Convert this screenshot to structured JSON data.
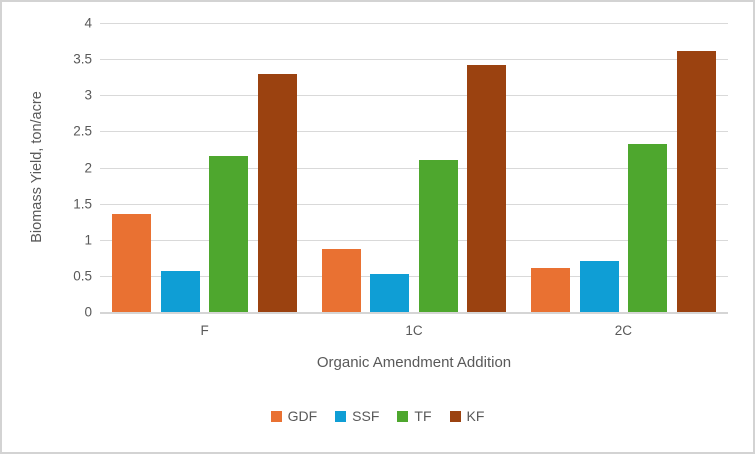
{
  "chart_data": {
    "type": "bar",
    "categories": [
      "F",
      "1C",
      "2C"
    ],
    "series": [
      {
        "name": "GDF",
        "color": "#E97132",
        "values": [
          1.36,
          0.87,
          0.61
        ]
      },
      {
        "name": "SSF",
        "color": "#0F9ED5",
        "values": [
          0.57,
          0.52,
          0.7
        ]
      },
      {
        "name": "TF",
        "color": "#4EA72E",
        "values": [
          2.16,
          2.1,
          2.33
        ]
      },
      {
        "name": "KF",
        "color": "#9B4210",
        "values": [
          3.3,
          3.42,
          3.61
        ]
      }
    ],
    "title": "",
    "xlabel": "Organic Amendment Addition",
    "ylabel": "Biomass Yield, ton/acre",
    "ylim": [
      0,
      4
    ],
    "ytick_step": 0.5,
    "ytick_labels": [
      "0",
      "0.5",
      "1",
      "1.5",
      "2",
      "2.5",
      "3",
      "3.5",
      "4"
    ],
    "grid": true,
    "legend_position": "bottom",
    "colors": {
      "axis_text": "#595959",
      "gridline": "#D9D9D9",
      "axis_line": "#D5D5D5",
      "chart_border": "#D3D3D3",
      "background": "#FFFFFF"
    }
  }
}
